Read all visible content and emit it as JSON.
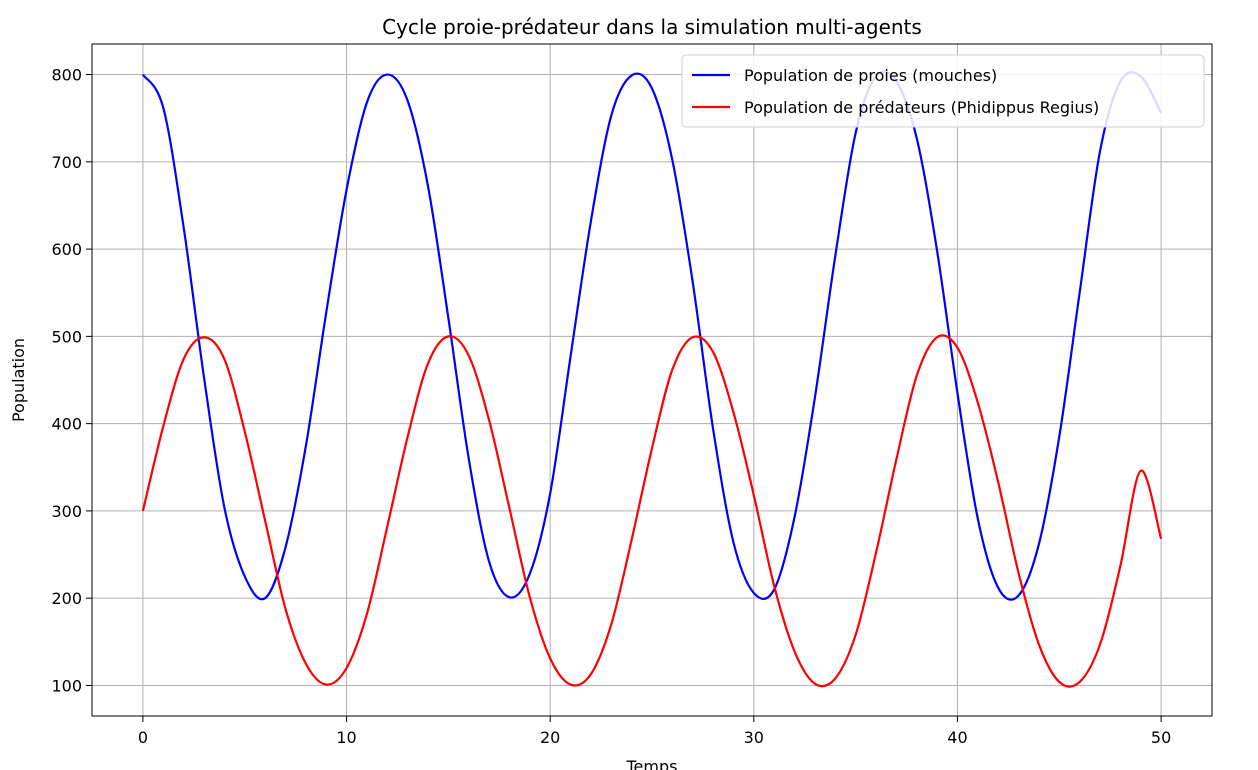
{
  "chart_data": {
    "type": "line",
    "title": "Cycle proie-prédateur dans la simulation multi-agents",
    "xlabel": "Temps",
    "ylabel": "Population",
    "xlim": [
      -2.5,
      52.5
    ],
    "ylim": [
      65,
      835
    ],
    "xticks": [
      0,
      10,
      20,
      30,
      40,
      50
    ],
    "yticks": [
      100,
      200,
      300,
      400,
      500,
      600,
      700,
      800
    ],
    "grid": true,
    "legend_position": "top-right",
    "x": [
      0,
      1,
      2,
      3,
      4,
      5,
      6,
      7,
      8,
      9,
      10,
      11,
      12,
      13,
      14,
      15,
      16,
      17,
      18,
      19,
      20,
      21,
      22,
      23,
      24,
      25,
      26,
      27,
      28,
      29,
      30,
      31,
      32,
      33,
      34,
      35,
      36,
      37,
      38,
      39,
      40,
      41,
      42,
      43,
      44,
      45,
      46,
      47,
      48,
      49,
      50
    ],
    "series": [
      {
        "name": "Population de proies (mouches)",
        "color": "#0000ff",
        "values": [
          800,
          762,
          625,
          453,
          304,
          225,
          200,
          258,
          374,
          527,
          668,
          768,
          800,
          770,
          672,
          521,
          360,
          242,
          201,
          228,
          320,
          477,
          632,
          753,
          799,
          784,
          702,
          562,
          394,
          264,
          206,
          210,
          293,
          430,
          592,
          733,
          798,
          792,
          727,
          598,
          435,
          291,
          212,
          203,
          262,
          385,
          550,
          712,
          792,
          798,
          756
        ]
      },
      {
        "name": "Population de prédateurs (Phidippus Regius)",
        "color": "#ff0000",
        "values": [
          300,
          397,
          474,
          499,
          474,
          391,
          289,
          188,
          125,
          101,
          120,
          182,
          282,
          385,
          469,
          500,
          478,
          404,
          303,
          201,
          131,
          101,
          113,
          170,
          267,
          372,
          462,
          499,
          482,
          413,
          318,
          214,
          139,
          102,
          108,
          158,
          252,
          359,
          455,
          499,
          487,
          424,
          333,
          229,
          147,
          104,
          104,
          147,
          237,
          346,
          268
        ]
      }
    ]
  }
}
